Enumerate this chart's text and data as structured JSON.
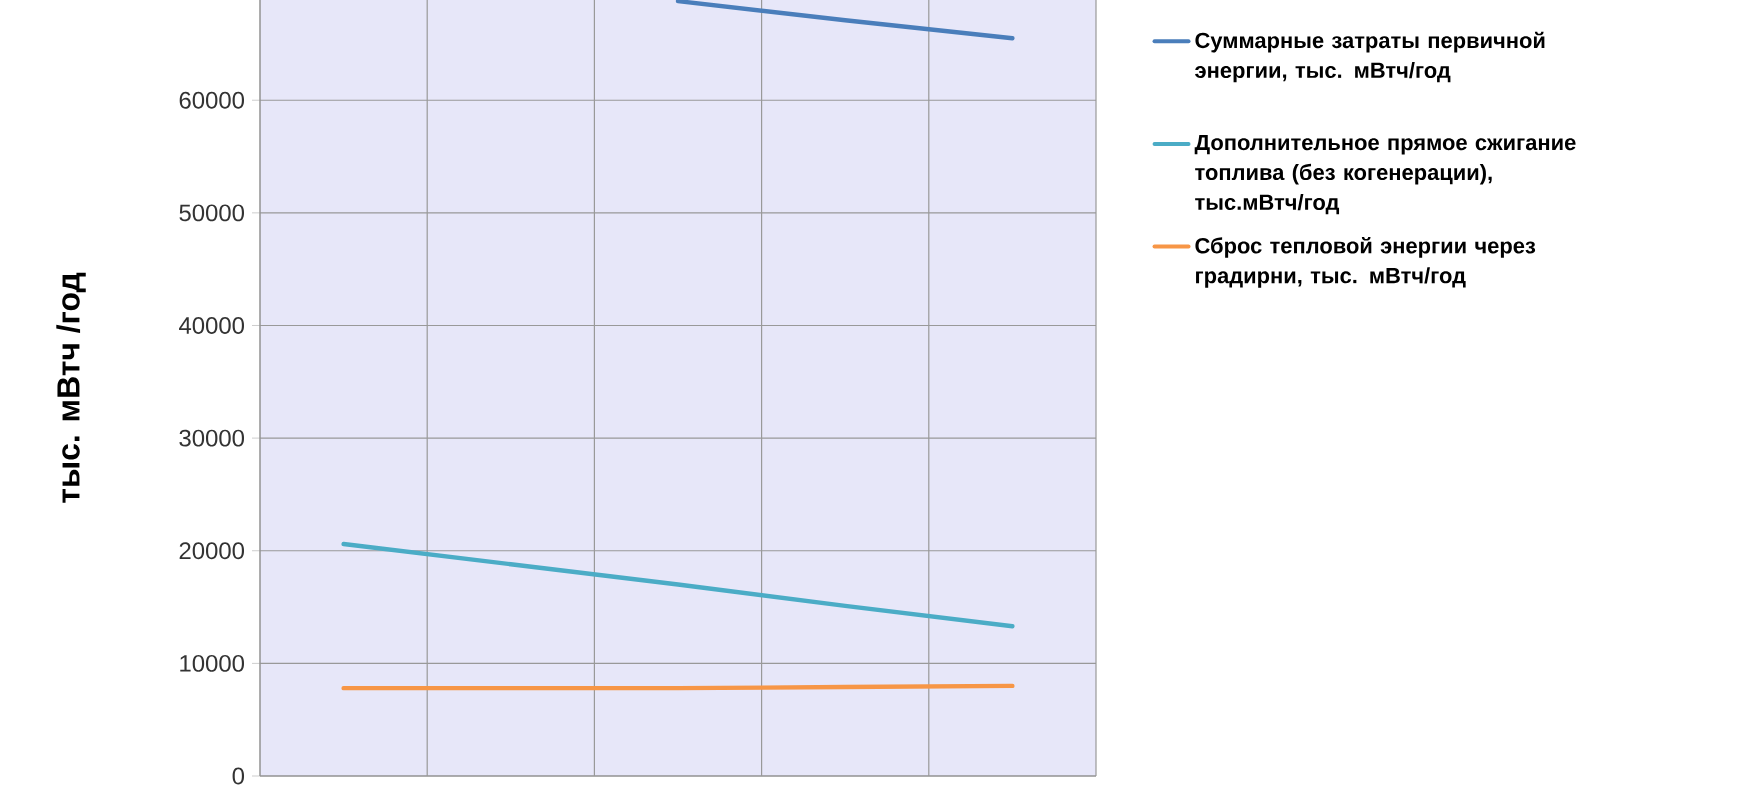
{
  "chart_data": {
    "type": "line",
    "ylabel": "тыс. мВтч /год",
    "categories": [
      null,
      null,
      null,
      null,
      null
    ],
    "series": [
      {
        "name": "Суммарные затраты первичной энергии, тыс. мВтч/год",
        "color": "#4a7ebb",
        "values": [
          null,
          null,
          68800,
          67100,
          65500
        ]
      },
      {
        "name": "Дополнительное прямое сжигание топлива (без когенерации), тыс.мВтч/год",
        "color": "#4bacc6",
        "values": [
          20600,
          18800,
          17000,
          15100,
          13300
        ]
      },
      {
        "name": "Сброс тепловой энергии через градирни, тыс. мВтч/год",
        "color": "#f79646",
        "values": [
          7800,
          7800,
          7800,
          7900,
          8000
        ]
      }
    ],
    "ylim": [
      0,
      68900
    ],
    "yticks": [
      0,
      10000,
      20000,
      30000,
      40000,
      50000,
      60000
    ],
    "grid": true,
    "legend": "right",
    "tick_labels": "y",
    "marker": "none",
    "line_style": "solid"
  }
}
